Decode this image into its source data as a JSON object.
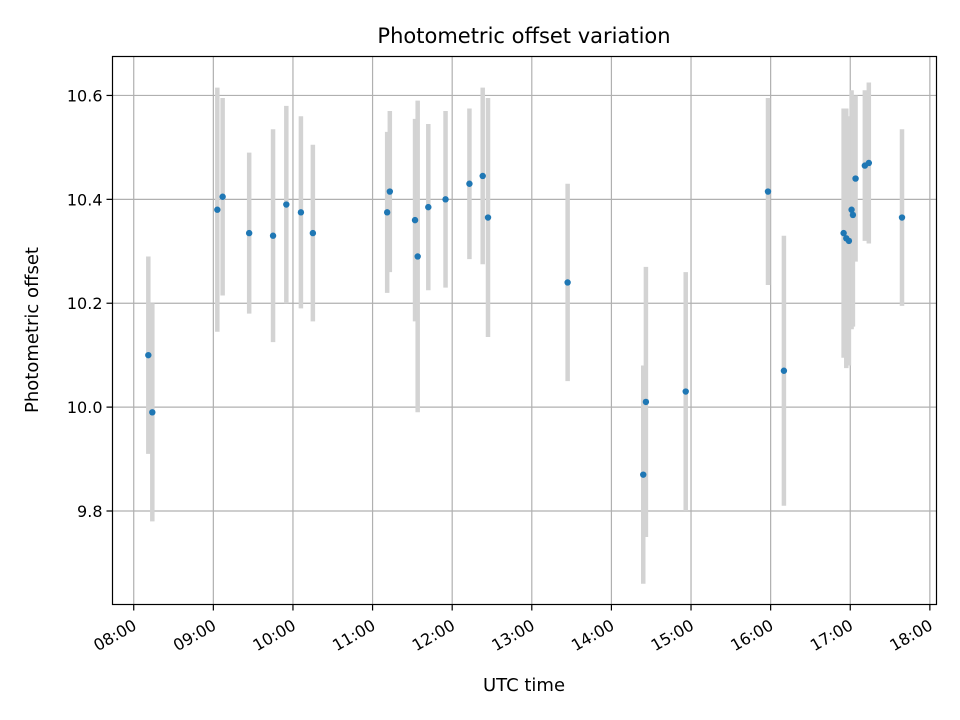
{
  "chart_data": {
    "type": "scatter",
    "title": "Photometric offset variation",
    "xlabel": "UTC time",
    "ylabel": "Photometric offset",
    "x_ticks": [
      "08:00",
      "09:00",
      "10:00",
      "11:00",
      "12:00",
      "13:00",
      "14:00",
      "15:00",
      "16:00",
      "17:00",
      "18:00"
    ],
    "y_ticks": [
      "9.8",
      "10.0",
      "10.2",
      "10.4",
      "10.6"
    ],
    "xlim": [
      "07:44",
      "18:05"
    ],
    "ylim": [
      9.62,
      10.675
    ],
    "grid": true,
    "colors": {
      "point": "#1f77b4",
      "errorbar": "#d3d3d3",
      "grid": "#b0b0b0"
    },
    "points": [
      {
        "x": "08:11",
        "y": 10.1,
        "err": 0.19
      },
      {
        "x": "08:14",
        "y": 9.99,
        "err": 0.21
      },
      {
        "x": "09:03",
        "y": 10.38,
        "err": 0.235
      },
      {
        "x": "09:07",
        "y": 10.405,
        "err": 0.19
      },
      {
        "x": "09:27",
        "y": 10.335,
        "err": 0.155
      },
      {
        "x": "09:45",
        "y": 10.33,
        "err": 0.205
      },
      {
        "x": "09:55",
        "y": 10.39,
        "err": 0.19
      },
      {
        "x": "10:06",
        "y": 10.375,
        "err": 0.185
      },
      {
        "x": "10:15",
        "y": 10.335,
        "err": 0.17
      },
      {
        "x": "11:11",
        "y": 10.375,
        "err": 0.155
      },
      {
        "x": "11:13",
        "y": 10.415,
        "err": 0.155
      },
      {
        "x": "11:32",
        "y": 10.36,
        "err": 0.195
      },
      {
        "x": "11:34",
        "y": 10.29,
        "err": 0.3
      },
      {
        "x": "11:42",
        "y": 10.385,
        "err": 0.16
      },
      {
        "x": "11:55",
        "y": 10.4,
        "err": 0.17
      },
      {
        "x": "12:13",
        "y": 10.43,
        "err": 0.145
      },
      {
        "x": "12:23",
        "y": 10.445,
        "err": 0.17
      },
      {
        "x": "12:27",
        "y": 10.365,
        "err": 0.23
      },
      {
        "x": "13:27",
        "y": 10.24,
        "err": 0.19
      },
      {
        "x": "14:24",
        "y": 9.87,
        "err": 0.21
      },
      {
        "x": "14:26",
        "y": 10.01,
        "err": 0.26
      },
      {
        "x": "14:56",
        "y": 10.03,
        "err": 0.23
      },
      {
        "x": "15:58",
        "y": 10.415,
        "err": 0.18
      },
      {
        "x": "16:10",
        "y": 10.07,
        "err": 0.26
      },
      {
        "x": "16:55",
        "y": 10.335,
        "err": 0.24
      },
      {
        "x": "16:57",
        "y": 10.325,
        "err": 0.25
      },
      {
        "x": "16:59",
        "y": 10.32,
        "err": 0.24
      },
      {
        "x": "17:01",
        "y": 10.38,
        "err": 0.23
      },
      {
        "x": "17:02",
        "y": 10.37,
        "err": 0.215
      },
      {
        "x": "17:04",
        "y": 10.44,
        "err": 0.16
      },
      {
        "x": "17:11",
        "y": 10.465,
        "err": 0.145
      },
      {
        "x": "17:14",
        "y": 10.47,
        "err": 0.155
      },
      {
        "x": "17:39",
        "y": 10.365,
        "err": 0.17
      }
    ]
  }
}
